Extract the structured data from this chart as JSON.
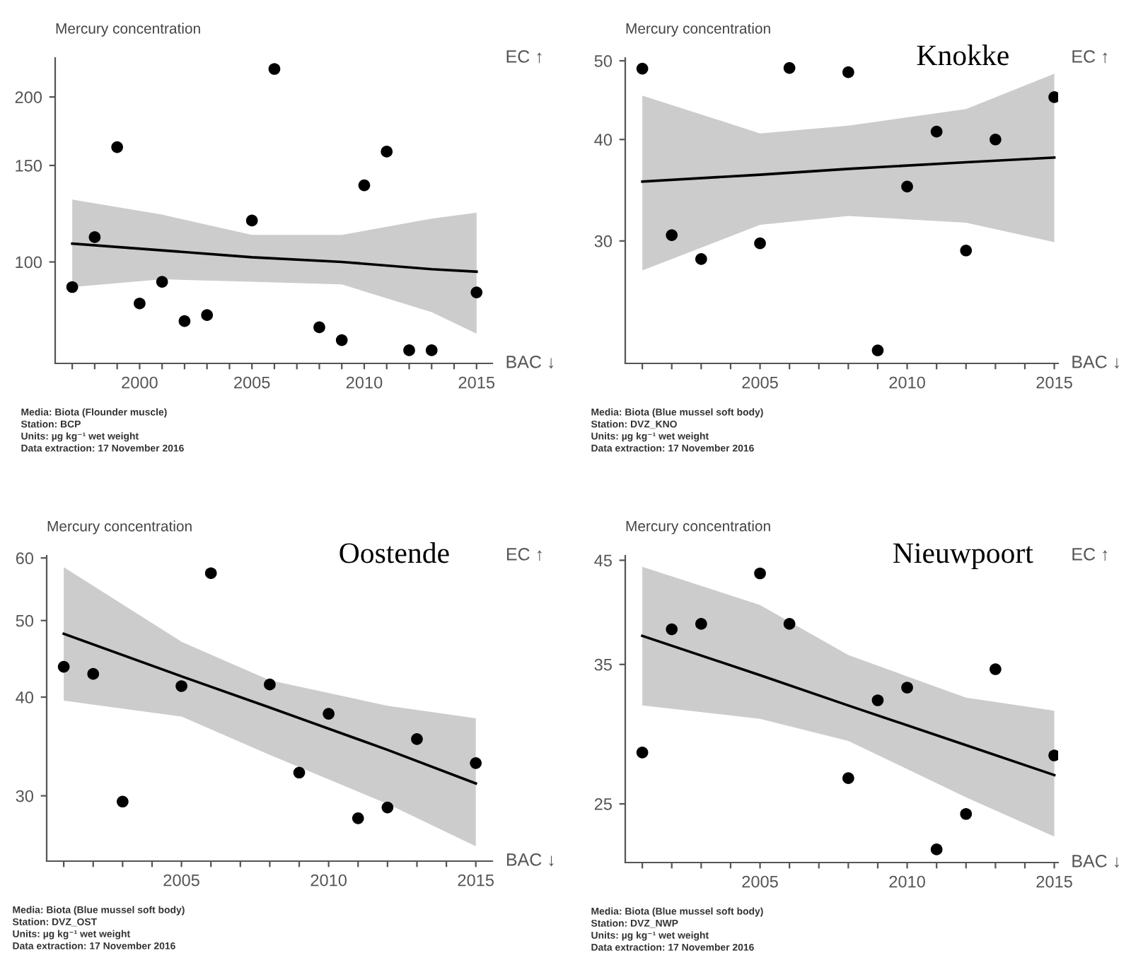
{
  "chart_data": [
    {
      "type": "scatter",
      "ylabel": "Mercury concentration",
      "log": "y",
      "grid": false,
      "legend": false,
      "marker": "circle",
      "xlim": [
        1996.24,
        2015.7
      ],
      "ylim": [
        65.3,
        235.6
      ],
      "yticks": [
        100,
        150,
        200
      ],
      "xticks": [
        {
          "value": 1997,
          "label": null
        },
        {
          "value": 1998,
          "label": null
        },
        {
          "value": 1999,
          "label": null
        },
        2000,
        {
          "value": 2001,
          "label": null
        },
        {
          "value": 2002,
          "label": null
        },
        {
          "value": 2003,
          "label": null
        },
        {
          "value": 2004,
          "label": null
        },
        2005,
        {
          "value": 2006,
          "label": null
        },
        {
          "value": 2007,
          "label": null
        },
        {
          "value": 2008,
          "label": null
        },
        {
          "value": 2009,
          "label": null
        },
        2010,
        {
          "value": 2011,
          "label": null
        },
        {
          "value": 2012,
          "label": null
        },
        {
          "value": 2013,
          "label": null
        },
        {
          "value": 2014,
          "label": null
        },
        2015
      ],
      "series": [
        {
          "color": "#000000",
          "x": [
            1997,
            1998,
            1999,
            2000,
            2001,
            2002,
            2003,
            2005,
            2006,
            2008,
            2009,
            2010,
            2011,
            2012,
            2013,
            2015
          ],
          "values": [
            90,
            111,
            162,
            84,
            92,
            78,
            80,
            119,
            225,
            76,
            72,
            138,
            159,
            69,
            69,
            88
          ]
        },
        {
          "type": "line",
          "marker": "none",
          "color": "#000000",
          "x": [
            1997,
            2001,
            2005,
            2009,
            2013,
            2015
          ],
          "values": [
            108,
            105,
            102,
            100,
            97,
            96
          ],
          "lower": [
            90,
            93,
            92,
            91,
            81,
            74
          ],
          "upper": [
            130,
            122,
            112,
            112,
            120,
            123
          ]
        }
      ],
      "annotations": [
        "EC ↑",
        "BAC ↓",
        "Media: Biota (Flounder muscle)",
        "Station: BCP",
        "Units: µg kg⁻¹ wet weight",
        "Data extraction: 17 November 2016"
      ]
    },
    {
      "type": "scatter",
      "title": "Knokke",
      "ylabel": "Mercury concentration",
      "log": "y",
      "grid": false,
      "legend": false,
      "marker": "circle",
      "xlim": [
        2000.42,
        2015.13
      ],
      "ylim": [
        21.2,
        50.4
      ],
      "yticks": [
        30,
        40,
        50
      ],
      "xticks": [
        {
          "value": 2001,
          "label": null
        },
        {
          "value": 2002,
          "label": null
        },
        {
          "value": 2003,
          "label": null
        },
        {
          "value": 2004,
          "label": null
        },
        2005,
        {
          "value": 2006,
          "label": null
        },
        {
          "value": 2007,
          "label": null
        },
        {
          "value": 2008,
          "label": null
        },
        {
          "value": 2009,
          "label": null
        },
        2010,
        {
          "value": 2011,
          "label": null
        },
        {
          "value": 2012,
          "label": null
        },
        {
          "value": 2013,
          "label": null
        },
        {
          "value": 2014,
          "label": null
        },
        2015
      ],
      "series": [
        {
          "color": "#000000",
          "x": [
            2001,
            2002,
            2003,
            2005,
            2006,
            2008,
            2009,
            2010,
            2011,
            2012,
            2013,
            2015
          ],
          "values": [
            48.9,
            30.5,
            28.5,
            29.8,
            49.0,
            48.4,
            22.0,
            35.0,
            40.9,
            29.2,
            40.0,
            45.1
          ]
        },
        {
          "type": "line",
          "marker": "none",
          "color": "#000000",
          "x": [
            2001,
            2005,
            2008,
            2012,
            2015
          ],
          "values": [
            35.5,
            36.2,
            36.8,
            37.5,
            38.0
          ],
          "lower": [
            27.6,
            31.4,
            32.2,
            31.6,
            29.9
          ],
          "upper": [
            45.3,
            40.7,
            41.6,
            43.6,
            48.2
          ]
        }
      ],
      "annotations": [
        "EC ↑",
        "BAC ↓",
        "Media: Biota (Blue mussel soft body)",
        "Station: DVZ_KNO",
        "Units: µg kg⁻¹ wet weight",
        "Data extraction: 17 November 2016"
      ]
    },
    {
      "type": "scatter",
      "title": "Oostende",
      "ylabel": "Mercury concentration",
      "log": "y",
      "grid": false,
      "legend": false,
      "marker": "circle",
      "xlim": [
        2000.42,
        2015.56
      ],
      "ylim": [
        24.8,
        60.4
      ],
      "yticks": [
        30,
        40,
        50,
        60
      ],
      "xticks": [
        {
          "value": 2001,
          "label": null
        },
        {
          "value": 2002,
          "label": null
        },
        {
          "value": 2003,
          "label": null
        },
        {
          "value": 2004,
          "label": null
        },
        2005,
        {
          "value": 2006,
          "label": null
        },
        {
          "value": 2007,
          "label": null
        },
        {
          "value": 2008,
          "label": null
        },
        {
          "value": 2009,
          "label": null
        },
        2010,
        {
          "value": 2011,
          "label": null
        },
        {
          "value": 2012,
          "label": null
        },
        {
          "value": 2013,
          "label": null
        },
        {
          "value": 2014,
          "label": null
        },
        2015
      ],
      "series": [
        {
          "color": "#000000",
          "x": [
            2001,
            2002,
            2003,
            2005,
            2006,
            2008,
            2009,
            2010,
            2011,
            2012,
            2013,
            2015
          ],
          "values": [
            43.7,
            42.8,
            29.5,
            41.3,
            57.4,
            41.5,
            32.1,
            38.1,
            28.1,
            29.0,
            35.4,
            33.0
          ]
        },
        {
          "type": "line",
          "marker": "none",
          "color": "#000000",
          "x": [
            2001,
            2005,
            2008,
            2012,
            2015
          ],
          "values": [
            48.1,
            42.5,
            38.8,
            34.3,
            31.1
          ],
          "lower": [
            39.6,
            37.8,
            33.8,
            29.3,
            25.9
          ],
          "upper": [
            58.4,
            47.0,
            42.0,
            39.0,
            37.6
          ]
        }
      ],
      "annotations": [
        "EC ↑",
        "BAC ↓",
        "Media: Biota (Blue mussel soft body)",
        "Station: DVZ_OST",
        "Units: µg kg⁻¹ wet weight",
        "Data extraction: 17 November 2016"
      ]
    },
    {
      "type": "scatter",
      "title": "Nieuwpoort",
      "ylabel": "Mercury concentration",
      "log": "y",
      "grid": false,
      "legend": false,
      "marker": "circle",
      "xlim": [
        2000.42,
        2015.13
      ],
      "ylim": [
        21.7,
        45.5
      ],
      "yticks": [
        25,
        35,
        45
      ],
      "xticks": [
        {
          "value": 2001,
          "label": null
        },
        {
          "value": 2002,
          "label": null
        },
        {
          "value": 2003,
          "label": null
        },
        {
          "value": 2004,
          "label": null
        },
        2005,
        {
          "value": 2006,
          "label": null
        },
        {
          "value": 2007,
          "label": null
        },
        {
          "value": 2008,
          "label": null
        },
        {
          "value": 2009,
          "label": null
        },
        2010,
        {
          "value": 2011,
          "label": null
        },
        {
          "value": 2012,
          "label": null
        },
        {
          "value": 2013,
          "label": null
        },
        {
          "value": 2014,
          "label": null
        },
        2015
      ],
      "series": [
        {
          "color": "#000000",
          "x": [
            2001,
            2002,
            2003,
            2005,
            2006,
            2008,
            2009,
            2010,
            2011,
            2012,
            2013,
            2015
          ],
          "values": [
            28.3,
            38.1,
            38.6,
            43.6,
            38.6,
            26.6,
            32.1,
            33.1,
            22.4,
            24.4,
            34.6,
            28.1
          ]
        },
        {
          "type": "line",
          "marker": "none",
          "color": "#000000",
          "x": [
            2001,
            2005,
            2008,
            2012,
            2015
          ],
          "values": [
            37.5,
            34.1,
            31.7,
            28.8,
            26.8
          ],
          "lower": [
            31.7,
            30.7,
            29.1,
            25.4,
            23.1
          ],
          "upper": [
            44.3,
            40.4,
            35.8,
            32.3,
            31.3
          ]
        }
      ],
      "annotations": [
        "EC ↑",
        "BAC ↓",
        "Media: Biota (Blue mussel soft body)",
        "Station: DVZ_NWP",
        "Units: µg kg⁻¹ wet weight",
        "Data extraction: 17 November 2016"
      ]
    }
  ]
}
